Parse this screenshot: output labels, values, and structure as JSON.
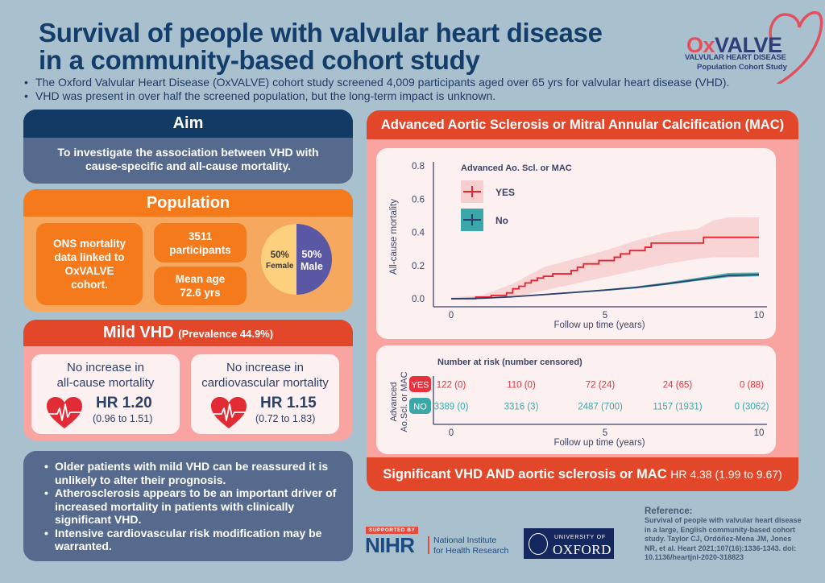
{
  "header": {
    "title": "Survival of people with valvular heart disease in a community-based cohort study",
    "intro": [
      "The Oxford Valvular Heart Disease (OxVALVE) cohort study screened 4,009 participants aged over 65 yrs for valvular heart disease (VHD).",
      "VHD was present in over half the screened population, but the long-term impact is unknown."
    ]
  },
  "logo": {
    "ox": "Ox",
    "valve": "VALVE",
    "line1": "VALVULAR HEART DISEASE",
    "line2": "Population Cohort Study",
    "colors": {
      "accent": "#e25060",
      "navy": "#2e3e79"
    }
  },
  "aim": {
    "title": "Aim",
    "text": "To investigate the association between VHD with cause-specific and all-cause mortality."
  },
  "population": {
    "title": "Population",
    "ons": "ONS mortality data linked to OxVALVE cohort.",
    "participants_value": "3511",
    "participants_label": "participants",
    "age_label": "Mean age",
    "age_value": "72.6 yrs",
    "sex_split": [
      {
        "pct": "50%",
        "label": "Female",
        "fraction": 0.5,
        "color": "#fdd07e"
      },
      {
        "pct": "50%",
        "label": "Male",
        "fraction": 0.5,
        "color": "#5a58a4"
      }
    ]
  },
  "mild_vhd": {
    "title": "Mild VHD",
    "prevalence": "(Prevalence 44.9%)",
    "cards": [
      {
        "title_1": "No increase in",
        "title_2": "all-cause mortality",
        "hr": "HR 1.20",
        "ci": "(0.96 to 1.51)"
      },
      {
        "title_1": "No increase in",
        "title_2": "cardiovascular mortality",
        "hr": "HR 1.15",
        "ci": "(0.72 to 1.83)"
      }
    ]
  },
  "conclusions": [
    "Older patients with mild VHD can be reassured it is unlikely to alter their prognosis.",
    "Atherosclerosis appears to be an important driver of increased mortality in patients with clinically significant VHD.",
    "Intensive cardiovascular risk modification may be warranted."
  ],
  "mac_panel": {
    "title": "Advanced Aortic Sclerosis or Mitral Annular Calcification (MAC)",
    "footer_main": "Significant VHD AND aortic sclerosis or MAC",
    "footer_hr": "HR 4.38 (1.99 to 9.67)"
  },
  "chart_data": {
    "type": "line",
    "title": "",
    "xlabel": "Follow up time (years)",
    "ylabel": "All-cause mortality",
    "xlim": [
      0,
      10
    ],
    "ylim": [
      0,
      0.8
    ],
    "xticks": [
      "0",
      "5",
      "10"
    ],
    "yticks": [
      "0.0",
      "0.2",
      "0.4",
      "0.6",
      "0.8"
    ],
    "legend_title": "Advanced Ao. Scl. or MAC",
    "legend_position": "top-left",
    "grid": false,
    "series": [
      {
        "name": "YES",
        "color": "#e8232f",
        "band_color": "#f8cfcf",
        "step": true,
        "x": [
          0,
          0.8,
          1.3,
          1.8,
          2.0,
          2.2,
          2.4,
          2.6,
          2.8,
          3.0,
          3.3,
          3.9,
          4.1,
          4.3,
          4.8,
          5.3,
          5.5,
          5.8,
          6.3,
          6.5,
          8.2,
          10
        ],
        "y": [
          0.0,
          0.01,
          0.02,
          0.035,
          0.06,
          0.075,
          0.095,
          0.11,
          0.125,
          0.135,
          0.15,
          0.17,
          0.19,
          0.21,
          0.23,
          0.25,
          0.27,
          0.29,
          0.31,
          0.335,
          0.37,
          0.37
        ],
        "ci_x": [
          0,
          1,
          2,
          3,
          4,
          5,
          6,
          7,
          8,
          8.5,
          9,
          10
        ],
        "ci_lower": [
          0,
          0,
          0.01,
          0.05,
          0.09,
          0.13,
          0.17,
          0.21,
          0.24,
          0.25,
          0.25,
          0.25
        ],
        "ci_upper": [
          0.01,
          0.02,
          0.09,
          0.19,
          0.24,
          0.29,
          0.35,
          0.4,
          0.42,
          0.47,
          0.49,
          0.49
        ]
      },
      {
        "name": "No",
        "color": "#2e3e6b",
        "band_color": "#3aa8a8",
        "step": false,
        "x": [
          0,
          1,
          2,
          3,
          4,
          5,
          6,
          7,
          8,
          9,
          10
        ],
        "y": [
          0.0,
          0.003,
          0.012,
          0.025,
          0.038,
          0.052,
          0.068,
          0.09,
          0.115,
          0.14,
          0.145
        ],
        "ci_x": [
          0,
          1,
          2,
          3,
          4,
          5,
          6,
          7,
          8,
          9,
          10
        ],
        "ci_lower": [
          0,
          0.001,
          0.009,
          0.021,
          0.034,
          0.047,
          0.062,
          0.083,
          0.107,
          0.13,
          0.135
        ],
        "ci_upper": [
          0,
          0.005,
          0.015,
          0.029,
          0.042,
          0.057,
          0.074,
          0.098,
          0.126,
          0.155,
          0.158
        ]
      }
    ]
  },
  "risk_table": {
    "title": "Number at risk (number censored)",
    "ylabel_1": "Advanced",
    "ylabel_2": "Ao.Scl. or MAC",
    "xlabel": "Follow up time (years)",
    "xticks": [
      "0",
      "5",
      "10"
    ],
    "rows": [
      {
        "label": "YES",
        "color": "#e8313c",
        "values": [
          "122 (0)",
          "110 (0)",
          "72 (24)",
          "24 (65)",
          "0 (88)"
        ]
      },
      {
        "label": "NO",
        "color": "#3aa8a8",
        "values": [
          "3389 (0)",
          "3316 (3)",
          "2487 (700)",
          "1157 (1931)",
          "0 (3062)"
        ]
      }
    ]
  },
  "footer": {
    "supported_by": "SUPPORTED BY",
    "nihr": "NIHR",
    "nihr_name_1": "National Institute",
    "nihr_name_2": "for Health Research",
    "oxford_top": "UNIVERSITY OF",
    "oxford_main": "OXFORD",
    "reference_title": "Reference:",
    "reference_text": "Survival of people with valvular heart disease in a large, English community-based cohort study. Taylor CJ, Ordóñez-Mena JM, Jones NR, et al. Heart 2021;107(16):1336-1343. doi: 10.1136/heartjnl-2020-318823"
  }
}
